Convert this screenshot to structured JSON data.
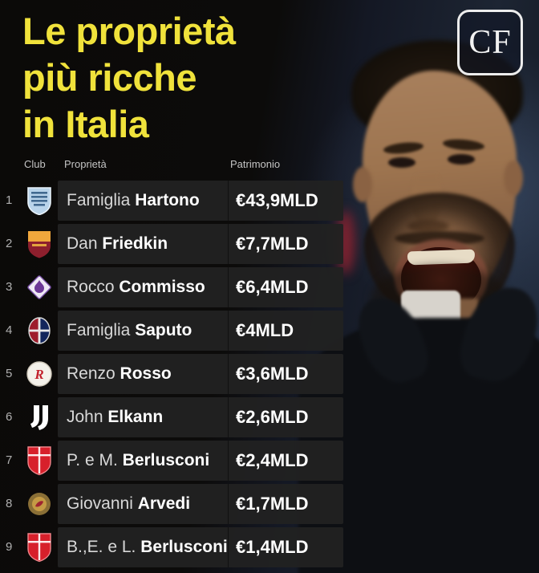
{
  "header": {
    "title_lines": [
      "Le proprietà",
      "più ricche",
      "in Italia"
    ],
    "logo_text": "CF"
  },
  "table": {
    "columns": {
      "club": "Club",
      "owner": "Proprietà",
      "wealth": "Patrimonio"
    },
    "rows": [
      {
        "rank": "1",
        "club_key": "como",
        "club_badge": "como-badge",
        "owner_first": "Famiglia",
        "owner_last": "Hartono",
        "wealth": "€43,9MLD"
      },
      {
        "rank": "2",
        "club_key": "roma",
        "club_badge": "roma-badge",
        "owner_first": "Dan",
        "owner_last": "Friedkin",
        "wealth": "€7,7MLD"
      },
      {
        "rank": "3",
        "club_key": "fiorentina",
        "club_badge": "fiorentina-badge",
        "owner_first": "Rocco",
        "owner_last": "Commisso",
        "wealth": "€6,4MLD"
      },
      {
        "rank": "4",
        "club_key": "bologna",
        "club_badge": "bologna-badge",
        "owner_first": "Famiglia",
        "owner_last": "Saputo",
        "wealth": "€4MLD"
      },
      {
        "rank": "5",
        "club_key": "vicenza",
        "club_badge": "vicenza-badge",
        "owner_first": "Renzo",
        "owner_last": "Rosso",
        "wealth": "€3,6MLD"
      },
      {
        "rank": "6",
        "club_key": "juventus",
        "club_badge": "juventus-badge",
        "owner_first": "John",
        "owner_last": "Elkann",
        "wealth": "€2,6MLD"
      },
      {
        "rank": "7",
        "club_key": "monza",
        "club_badge": "monza-badge",
        "owner_first": "P. e M.",
        "owner_last": "Berlusconi",
        "wealth": "€2,4MLD"
      },
      {
        "rank": "8",
        "club_key": "cremonese",
        "club_badge": "cremonese-badge",
        "owner_first": "Giovanni",
        "owner_last": "Arvedi",
        "wealth": "€1,7MLD"
      },
      {
        "rank": "9",
        "club_key": "monza",
        "club_badge": "monza-badge",
        "owner_first": "B.,E. e L.",
        "owner_last": "Berlusconi",
        "wealth": "€1,4MLD"
      }
    ]
  },
  "chart_data": {
    "type": "table",
    "title": "Le proprietà più ricche in Italia",
    "columns": [
      "Club",
      "Proprietà",
      "Patrimonio"
    ],
    "rows": [
      [
        "Como",
        "Famiglia Hartono",
        "€43,9MLD"
      ],
      [
        "Roma",
        "Dan Friedkin",
        "€7,7MLD"
      ],
      [
        "Fiorentina",
        "Rocco Commisso",
        "€6,4MLD"
      ],
      [
        "Bologna",
        "Famiglia Saputo",
        "€4MLD"
      ],
      [
        "Vicenza",
        "Renzo Rosso",
        "€3,6MLD"
      ],
      [
        "Juventus",
        "John Elkann",
        "€2,6MLD"
      ],
      [
        "Monza",
        "P. e M. Berlusconi",
        "€2,4MLD"
      ],
      [
        "Cremonese",
        "Giovanni Arvedi",
        "€1,7MLD"
      ],
      [
        "Monza",
        "B.,E. e L. Berlusconi",
        "€1,4MLD"
      ]
    ]
  },
  "colors": {
    "accent_yellow": "#f0e23b",
    "row_background": "#212121",
    "value_text": "#ffffff",
    "muted_text": "#c4c4c4"
  }
}
